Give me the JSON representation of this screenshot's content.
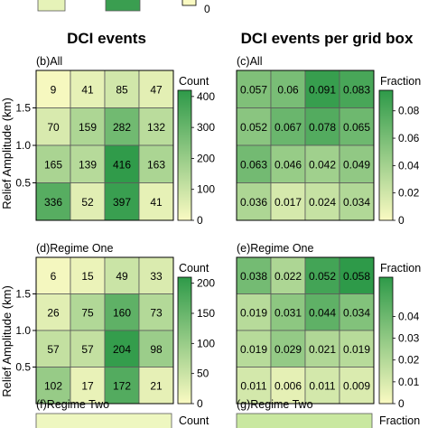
{
  "column_titles": [
    "DCI events",
    "DCI events per grid box"
  ],
  "chart_data": [
    {
      "id": "b",
      "type": "heatmap",
      "title": "(b)All",
      "ylabel": "Relief Amplitude (km)",
      "yticks": [
        "0.5",
        "1.0",
        "1.5"
      ],
      "colorbar_title": "Count",
      "colorbar_ticks": [
        "0",
        "100",
        "200",
        "300",
        "400"
      ],
      "vmin": 0,
      "vmax": 420,
      "values": [
        [
          9,
          41,
          85,
          47
        ],
        [
          70,
          159,
          282,
          132
        ],
        [
          165,
          139,
          416,
          163
        ],
        [
          336,
          52,
          397,
          41
        ]
      ],
      "labels": [
        [
          "9",
          "41",
          "85",
          "47"
        ],
        [
          "70",
          "159",
          "282",
          "132"
        ],
        [
          "165",
          "139",
          "416",
          "163"
        ],
        [
          "336",
          "52",
          "397",
          "41"
        ]
      ]
    },
    {
      "id": "c",
      "type": "heatmap",
      "title": "(c)All",
      "colorbar_title": "Fraction",
      "colorbar_ticks": [
        "0",
        "0.02",
        "0.04",
        "0.06",
        "0.08"
      ],
      "vmin": 0,
      "vmax": 0.095,
      "values": [
        [
          0.057,
          0.06,
          0.091,
          0.083
        ],
        [
          0.052,
          0.067,
          0.078,
          0.065
        ],
        [
          0.063,
          0.046,
          0.042,
          0.049
        ],
        [
          0.036,
          0.017,
          0.024,
          0.034
        ]
      ],
      "labels": [
        [
          "0.057",
          "0.06",
          "0.091",
          "0.083"
        ],
        [
          "0.052",
          "0.067",
          "0.078",
          "0.065"
        ],
        [
          "0.063",
          "0.046",
          "0.042",
          "0.049"
        ],
        [
          "0.036",
          "0.017",
          "0.024",
          "0.034"
        ]
      ]
    },
    {
      "id": "d",
      "type": "heatmap",
      "title": "(d)Regime One",
      "ylabel": "Relief Amplitude (km)",
      "yticks": [
        "0.5",
        "1.0",
        "1.5"
      ],
      "colorbar_title": "Count",
      "colorbar_ticks": [
        "0",
        "50",
        "100",
        "150",
        "200"
      ],
      "vmin": 0,
      "vmax": 210,
      "values": [
        [
          6,
          15,
          49,
          33
        ],
        [
          26,
          75,
          160,
          73
        ],
        [
          57,
          57,
          204,
          98
        ],
        [
          102,
          17,
          172,
          21
        ]
      ],
      "labels": [
        [
          "6",
          "15",
          "49",
          "33"
        ],
        [
          "26",
          "75",
          "160",
          "73"
        ],
        [
          "57",
          "57",
          "204",
          "98"
        ],
        [
          "102",
          "17",
          "172",
          "21"
        ]
      ]
    },
    {
      "id": "e",
      "type": "heatmap",
      "title": "(e)Regime One",
      "colorbar_title": "Fraction",
      "colorbar_ticks": [
        "0",
        "0.01",
        "0.02",
        "0.03",
        "0.04"
      ],
      "vmin": 0,
      "vmax": 0.058,
      "values": [
        [
          0.038,
          0.022,
          0.052,
          0.058
        ],
        [
          0.019,
          0.031,
          0.044,
          0.034
        ],
        [
          0.019,
          0.029,
          0.021,
          0.019
        ],
        [
          0.011,
          0.006,
          0.011,
          0.009
        ]
      ],
      "labels": [
        [
          "0.038",
          "0.022",
          "0.052",
          "0.058"
        ],
        [
          "0.019",
          "0.031",
          "0.044",
          "0.034"
        ],
        [
          "0.019",
          "0.029",
          "0.021",
          "0.019"
        ],
        [
          "0.011",
          "0.006",
          "0.011",
          "0.009"
        ]
      ]
    }
  ],
  "partial_panels": {
    "f_title": "(f)Regime Two",
    "f_colorbar_title": "Count",
    "g_title": "(g)Regime Two",
    "g_colorbar_title": "Fraction",
    "top_colorbar_tick": "0"
  },
  "colors": {
    "low": "#fafac2",
    "high": "#2e9a49"
  }
}
